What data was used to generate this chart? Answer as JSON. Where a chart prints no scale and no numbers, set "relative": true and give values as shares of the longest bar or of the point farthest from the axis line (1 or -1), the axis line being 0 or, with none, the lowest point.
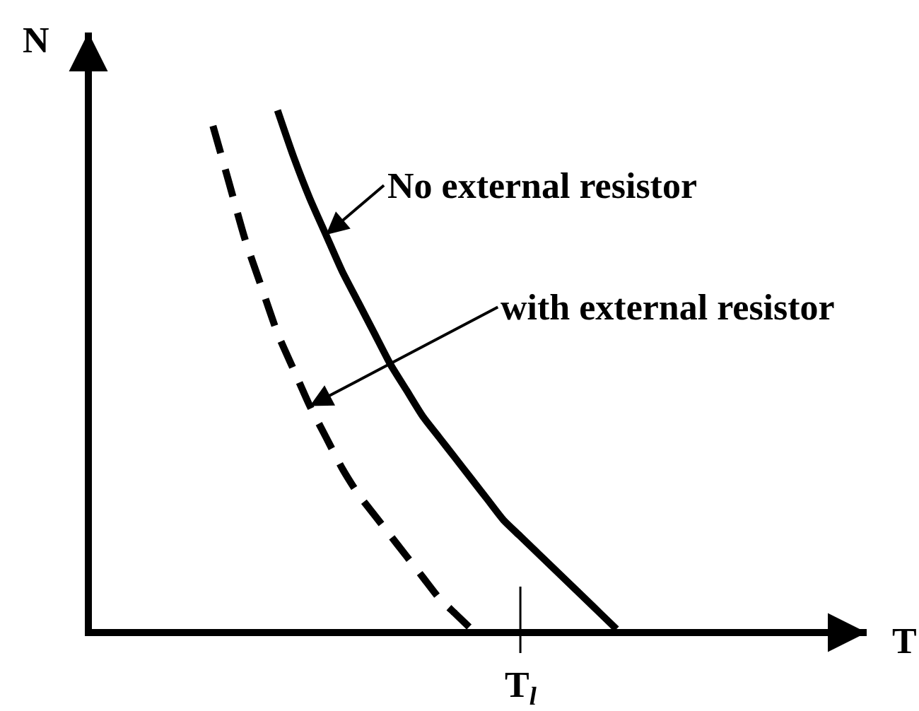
{
  "chart_data": {
    "type": "line",
    "relative": true,
    "xlabel": "T",
    "ylabel": "N",
    "categories": [
      null,
      null,
      null,
      null,
      null,
      null,
      null,
      null,
      null,
      null,
      null,
      null,
      null,
      null,
      null,
      null,
      null,
      null,
      null,
      null,
      null,
      null,
      null,
      null,
      null,
      null,
      null,
      null,
      null,
      null,
      null,
      null,
      null,
      null,
      null,
      null,
      null,
      null,
      null,
      null,
      null,
      null,
      null,
      null,
      null,
      null,
      null,
      null
    ],
    "series": [
      {
        "color": "#000000",
        "line_style": "solid",
        "values": [
          null,
          null,
          null,
          null,
          null,
          null,
          null,
          null,
          null,
          null,
          null,
          1,
          0.91,
          0.83,
          0.76,
          0.69,
          0.63,
          0.57,
          0.51,
          0.46,
          0.41,
          0.37,
          0.33,
          0.29,
          0.25,
          0.21,
          0.18,
          0.15,
          0.12,
          0.09,
          0.06,
          0.03,
          0,
          null,
          null,
          null,
          null,
          null,
          null,
          null,
          null,
          null,
          null,
          null,
          null,
          null,
          null,
          null
        ]
      },
      {
        "color": "#000000",
        "line_style": "dashed",
        "values": [
          null,
          null,
          null,
          null,
          null,
          null,
          null,
          0.97,
          0.86,
          0.75,
          0.66,
          0.57,
          0.5,
          0.43,
          0.37,
          0.31,
          0.26,
          0.22,
          0.18,
          0.14,
          0.1,
          0.06,
          0.03,
          0,
          null,
          null,
          null,
          null,
          null,
          null,
          null,
          null,
          null,
          null,
          null,
          null,
          null,
          null,
          null,
          null,
          null,
          null,
          null,
          null,
          null,
          null,
          null,
          null
        ]
      }
    ],
    "annotations": [
      "No external resistor",
      "with external resistor",
      "T$_{l}$"
    ]
  }
}
